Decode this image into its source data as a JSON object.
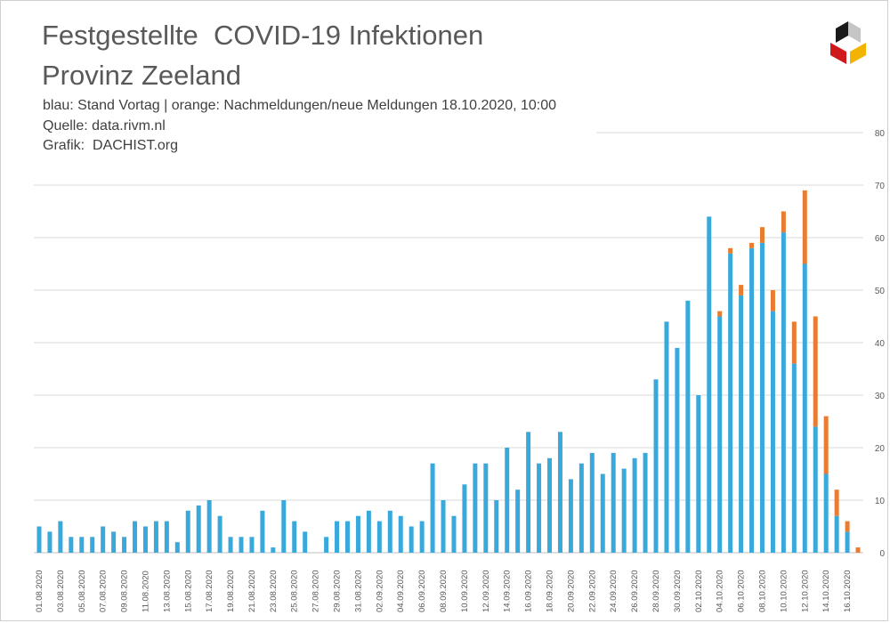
{
  "header": {
    "title_line1": "Festgestellte  COVID-19 Infektionen",
    "title_line2": "Provinz Zeeland",
    "legend_note": "blau: Stand Vortag | orange: Nachmeldungen/neue Meldungen 18.10.2020, 10:00",
    "source": "Quelle: data.rivm.nl",
    "graphic": "Grafik:  DACHIST.org"
  },
  "logo": {
    "icon": "dachist-logo-icon",
    "colors": [
      "#1a1a1a",
      "#d0191b",
      "#f2b400",
      "#bfbfbf"
    ]
  },
  "colors": {
    "blue": "#39a9dc",
    "orange": "#e97c30",
    "grid": "#d9d9d9",
    "text": "#595959"
  },
  "chart_data": {
    "type": "bar",
    "stacked": true,
    "ylim": [
      0,
      80
    ],
    "yticks": [
      0,
      10,
      20,
      30,
      40,
      50,
      60,
      70,
      80
    ],
    "y_axis_side": "right",
    "grid": true,
    "categories": [
      "01.08.2020",
      "02.08.2020",
      "03.08.2020",
      "04.08.2020",
      "05.08.2020",
      "06.08.2020",
      "07.08.2020",
      "08.08.2020",
      "09.08.2020",
      "10.08.2020",
      "11.08.2020",
      "12.08.2020",
      "13.08.2020",
      "14.08.2020",
      "15.08.2020",
      "16.08.2020",
      "17.08.2020",
      "18.08.2020",
      "19.08.2020",
      "20.08.2020",
      "21.08.2020",
      "22.08.2020",
      "23.08.2020",
      "24.08.2020",
      "25.08.2020",
      "26.08.2020",
      "27.08.2020",
      "28.08.2020",
      "29.08.2020",
      "30.08.2020",
      "31.08.2020",
      "01.09.2020",
      "02.09.2020",
      "03.09.2020",
      "04.09.2020",
      "05.09.2020",
      "06.09.2020",
      "07.09.2020",
      "08.09.2020",
      "09.09.2020",
      "10.09.2020",
      "11.09.2020",
      "12.09.2020",
      "13.09.2020",
      "14.09.2020",
      "15.09.2020",
      "16.09.2020",
      "17.09.2020",
      "18.09.2020",
      "19.09.2020",
      "20.09.2020",
      "21.09.2020",
      "22.09.2020",
      "23.09.2020",
      "24.09.2020",
      "25.09.2020",
      "26.09.2020",
      "27.09.2020",
      "28.09.2020",
      "29.09.2020",
      "30.09.2020",
      "01.10.2020",
      "02.10.2020",
      "03.10.2020",
      "04.10.2020",
      "05.10.2020",
      "06.10.2020",
      "07.10.2020",
      "08.10.2020",
      "09.10.2020",
      "10.10.2020",
      "11.10.2020",
      "12.10.2020",
      "13.10.2020",
      "14.10.2020",
      "15.10.2020",
      "16.10.2020",
      "17.10.2020"
    ],
    "series": [
      {
        "name": "Stand Vortag",
        "color": "#39a9dc",
        "values": [
          5,
          4,
          6,
          3,
          3,
          3,
          5,
          4,
          3,
          6,
          5,
          6,
          6,
          2,
          8,
          9,
          10,
          7,
          3,
          3,
          3,
          8,
          1,
          10,
          6,
          4,
          0,
          3,
          6,
          6,
          7,
          8,
          6,
          8,
          7,
          5,
          6,
          17,
          10,
          7,
          13,
          17,
          17,
          10,
          20,
          12,
          23,
          17,
          18,
          23,
          14,
          17,
          19,
          15,
          19,
          16,
          18,
          19,
          33,
          44,
          39,
          48,
          30,
          64,
          45,
          57,
          49,
          58,
          59,
          46,
          61,
          36,
          55,
          24,
          15,
          7,
          4,
          0
        ]
      },
      {
        "name": "Nachmeldungen/neue Meldungen",
        "color": "#e97c30",
        "values": [
          0,
          0,
          0,
          0,
          0,
          0,
          0,
          0,
          0,
          0,
          0,
          0,
          0,
          0,
          0,
          0,
          0,
          0,
          0,
          0,
          0,
          0,
          0,
          0,
          0,
          0,
          0,
          0,
          0,
          0,
          0,
          0,
          0,
          0,
          0,
          0,
          0,
          0,
          0,
          0,
          0,
          0,
          0,
          0,
          0,
          0,
          0,
          0,
          0,
          0,
          0,
          0,
          0,
          0,
          0,
          0,
          0,
          0,
          0,
          0,
          0,
          0,
          0,
          0,
          1,
          1,
          2,
          1,
          3,
          4,
          4,
          8,
          14,
          21,
          11,
          5,
          2,
          1
        ]
      }
    ],
    "tick_label_every": 2
  }
}
